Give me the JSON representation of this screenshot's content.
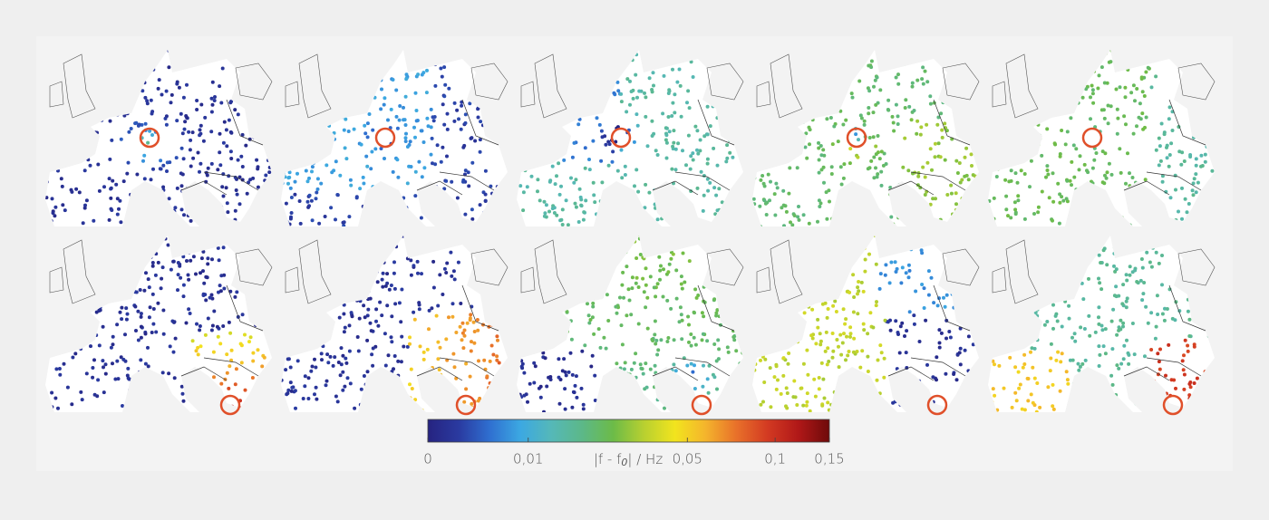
{
  "colorbar": {
    "label": {
      "main": "|f - f",
      "sub": "0",
      "rest": "| / Hz"
    },
    "lim": [
      0,
      0.15
    ],
    "ticks": [
      0,
      {
        "value": 0.01,
        "label": "0,01"
      },
      {
        "value": 0.05,
        "label": "0,05"
      },
      {
        "value": 0.1,
        "label": "0,1"
      },
      {
        "value": 0.15,
        "label": "0,15"
      }
    ],
    "colormap": [
      "#262380",
      "#2a3aa0",
      "#2f6fd0",
      "#3ca8e2",
      "#55b8b8",
      "#5cb888",
      "#6cbb48",
      "#b8d030",
      "#f2e41e",
      "#f4b42c",
      "#e8702a",
      "#d33a22",
      "#b01818",
      "#6e0a0a"
    ]
  }
}
